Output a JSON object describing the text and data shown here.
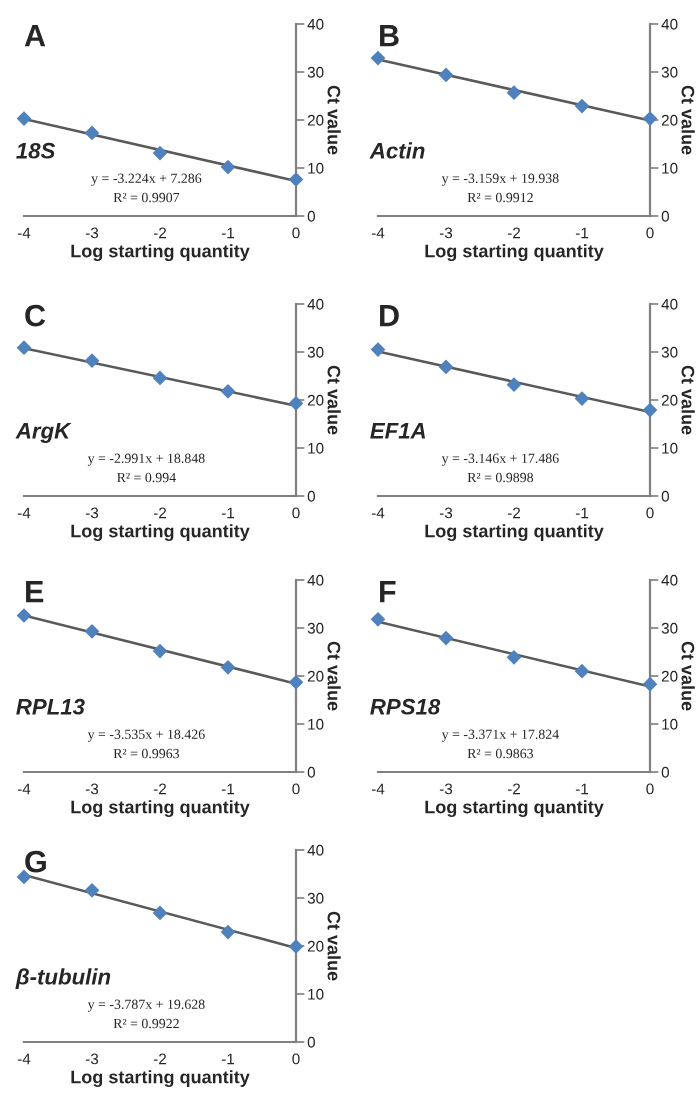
{
  "chart_data": [
    {
      "type": "scatter",
      "title": "A",
      "subtitle": "18S",
      "xlabel": "Log starting quantity",
      "ylabel": "Ct value",
      "annotations": [
        "y = -3.224x + 7.286",
        "R² = 0.9907"
      ],
      "xlim": [
        -4,
        0
      ],
      "ylim": [
        0,
        40
      ],
      "xticks": [
        -4,
        -3,
        -2,
        -1,
        0
      ],
      "yticks": [
        0,
        10,
        20,
        30,
        40
      ],
      "series": [
        {
          "color": "#4f81bd",
          "marker": "diamond",
          "x": [
            -4,
            -3,
            -2,
            -1,
            0
          ],
          "values": [
            20.3,
            17.3,
            13.1,
            10.2,
            7.6
          ]
        },
        {
          "type": "line",
          "color": "#595959",
          "marker": "none",
          "x": [
            -4,
            0
          ],
          "values": [
            20.2,
            7.3
          ]
        }
      ]
    },
    {
      "type": "scatter",
      "title": "B",
      "subtitle": "Actin",
      "xlabel": "Log starting quantity",
      "ylabel": "Ct value",
      "annotations": [
        "y = -3.159x + 19.938",
        "R² = 0.9912"
      ],
      "xlim": [
        -4,
        0
      ],
      "ylim": [
        0,
        40
      ],
      "xticks": [
        -4,
        -3,
        -2,
        -1,
        0
      ],
      "yticks": [
        0,
        10,
        20,
        30,
        40
      ],
      "series": [
        {
          "color": "#4f81bd",
          "marker": "diamond",
          "x": [
            -4,
            -3,
            -2,
            -1,
            0
          ],
          "values": [
            32.9,
            29.4,
            25.7,
            22.9,
            20.3
          ]
        },
        {
          "type": "line",
          "color": "#595959",
          "marker": "none",
          "x": [
            -4,
            0
          ],
          "values": [
            32.6,
            19.9
          ]
        }
      ]
    },
    {
      "type": "scatter",
      "title": "C",
      "subtitle": "ArgK",
      "xlabel": "Log starting quantity",
      "ylabel": "Ct value",
      "annotations": [
        "y = -2.991x + 18.848",
        "R² = 0.994"
      ],
      "xlim": [
        -4,
        0
      ],
      "ylim": [
        0,
        40
      ],
      "xticks": [
        -4,
        -3,
        -2,
        -1,
        0
      ],
      "yticks": [
        0,
        10,
        20,
        30,
        40
      ],
      "series": [
        {
          "color": "#4f81bd",
          "marker": "diamond",
          "x": [
            -4,
            -3,
            -2,
            -1,
            0
          ],
          "values": [
            30.9,
            28.2,
            24.6,
            21.8,
            19.3
          ]
        },
        {
          "type": "line",
          "color": "#595959",
          "marker": "none",
          "x": [
            -4,
            0
          ],
          "values": [
            30.8,
            18.8
          ]
        }
      ]
    },
    {
      "type": "scatter",
      "title": "D",
      "subtitle": "EF1A",
      "xlabel": "Log starting quantity",
      "ylabel": "Ct value",
      "annotations": [
        "y = -3.146x + 17.486",
        "R² = 0.9898"
      ],
      "xlim": [
        -4,
        0
      ],
      "ylim": [
        0,
        40
      ],
      "xticks": [
        -4,
        -3,
        -2,
        -1,
        0
      ],
      "yticks": [
        0,
        10,
        20,
        30,
        40
      ],
      "series": [
        {
          "color": "#4f81bd",
          "marker": "diamond",
          "x": [
            -4,
            -3,
            -2,
            -1,
            0
          ],
          "values": [
            30.5,
            26.9,
            23.2,
            20.3,
            17.9
          ]
        },
        {
          "type": "line",
          "color": "#595959",
          "marker": "none",
          "x": [
            -4,
            0
          ],
          "values": [
            30.1,
            17.5
          ]
        }
      ]
    },
    {
      "type": "scatter",
      "title": "E",
      "subtitle": "RPL13",
      "xlabel": "Log starting quantity",
      "ylabel": "Ct value",
      "annotations": [
        "y = -3.535x + 18.426",
        "R² = 0.9963"
      ],
      "xlim": [
        -4,
        0
      ],
      "ylim": [
        0,
        40
      ],
      "xticks": [
        -4,
        -3,
        -2,
        -1,
        0
      ],
      "yticks": [
        0,
        10,
        20,
        30,
        40
      ],
      "series": [
        {
          "color": "#4f81bd",
          "marker": "diamond",
          "x": [
            -4,
            -3,
            -2,
            -1,
            0
          ],
          "values": [
            32.6,
            29.3,
            25.2,
            21.8,
            18.7
          ]
        },
        {
          "type": "line",
          "color": "#595959",
          "marker": "none",
          "x": [
            -4,
            0
          ],
          "values": [
            32.6,
            18.4
          ]
        }
      ]
    },
    {
      "type": "scatter",
      "title": "F",
      "subtitle": "RPS18",
      "xlabel": "Log starting quantity",
      "ylabel": "Ct value",
      "annotations": [
        "y = -3.371x + 17.824",
        "R² = 0.9863"
      ],
      "xlim": [
        -4,
        0
      ],
      "ylim": [
        0,
        40
      ],
      "xticks": [
        -4,
        -3,
        -2,
        -1,
        0
      ],
      "yticks": [
        0,
        10,
        20,
        30,
        40
      ],
      "series": [
        {
          "color": "#4f81bd",
          "marker": "diamond",
          "x": [
            -4,
            -3,
            -2,
            -1,
            0
          ],
          "values": [
            31.8,
            27.9,
            23.9,
            21.0,
            18.3
          ]
        },
        {
          "type": "line",
          "color": "#595959",
          "marker": "none",
          "x": [
            -4,
            0
          ],
          "values": [
            31.3,
            17.8
          ]
        }
      ]
    },
    {
      "type": "scatter",
      "title": "G",
      "subtitle": "β-tubulin",
      "xlabel": "Log starting quantity",
      "ylabel": "Ct value",
      "annotations": [
        "y = -3.787x + 19.628",
        "R² = 0.9922"
      ],
      "xlim": [
        -4,
        0
      ],
      "ylim": [
        0,
        40
      ],
      "xticks": [
        -4,
        -3,
        -2,
        -1,
        0
      ],
      "yticks": [
        0,
        10,
        20,
        30,
        40
      ],
      "series": [
        {
          "color": "#4f81bd",
          "marker": "diamond",
          "x": [
            -4,
            -3,
            -2,
            -1,
            0
          ],
          "values": [
            34.4,
            31.6,
            26.9,
            22.9,
            19.9
          ]
        },
        {
          "type": "line",
          "color": "#595959",
          "marker": "none",
          "x": [
            -4,
            0
          ],
          "values": [
            34.8,
            19.6
          ]
        }
      ]
    }
  ]
}
